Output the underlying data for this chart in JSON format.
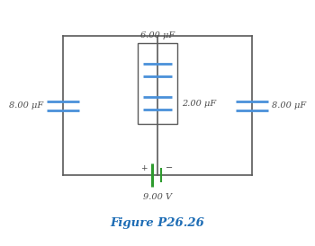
{
  "title": "Figure P26.26",
  "title_color": "#1E6DB5",
  "title_fontsize": 9.5,
  "bg_color": "#ffffff",
  "cap_color": "#4A90D9",
  "wire_color": "#5A5A5A",
  "battery_color": "#2E9B2E",
  "box_color": "#5A5A5A",
  "labels": {
    "top_cap": "6.00 μF",
    "mid_cap": "2.00 μF",
    "left_cap": "8.00 μF",
    "right_cap": "8.00 μF",
    "battery": "9.00 V"
  },
  "label_fontsize": 7.0,
  "label_color": "#4A4A4A",
  "label_style": "italic"
}
